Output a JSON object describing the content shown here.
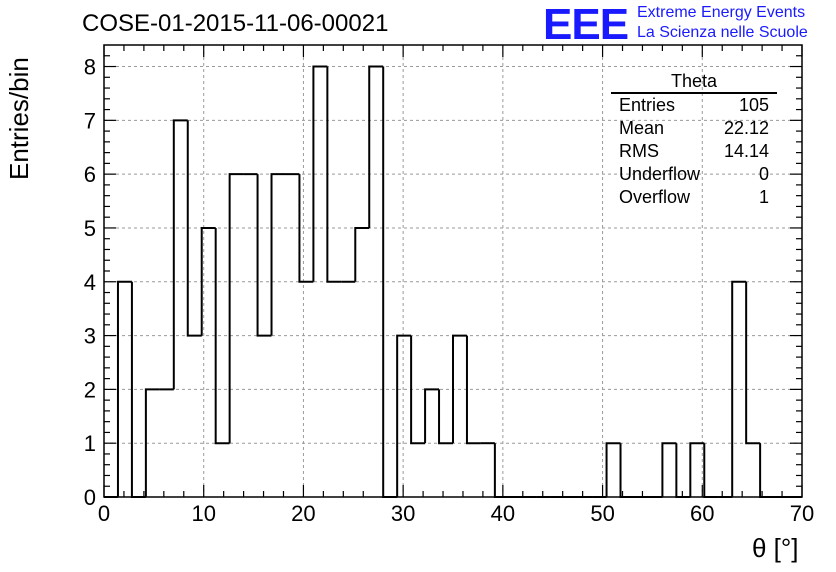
{
  "title": "COSE-01-2015-11-06-00021",
  "logo": {
    "mark": "EEE",
    "line1": "Extreme Energy Events",
    "line2": "La Scienza nelle Scuole",
    "color": "#1a1aff"
  },
  "stats": {
    "title": "Theta",
    "rows": [
      {
        "label": "Entries",
        "value": "105"
      },
      {
        "label": "Mean",
        "value": "22.12"
      },
      {
        "label": "RMS",
        "value": "14.14"
      },
      {
        "label": "Underflow",
        "value": "0"
      },
      {
        "label": "Overflow",
        "value": "1"
      }
    ]
  },
  "chart_data": {
    "type": "bar",
    "histogram": true,
    "xlabel": "θ [°]",
    "ylabel": "Entries/bin",
    "xlim": [
      0,
      70
    ],
    "ylim": [
      0,
      8.4
    ],
    "grid": true,
    "bin_width": 1.4,
    "bin_edges_start": 0,
    "x_ticks": [
      0,
      10,
      20,
      30,
      40,
      50,
      60,
      70
    ],
    "y_ticks": [
      0,
      1,
      2,
      3,
      4,
      5,
      6,
      7,
      8
    ],
    "values": [
      0,
      4,
      0,
      2,
      2,
      7,
      3,
      5,
      1,
      6,
      6,
      3,
      6,
      6,
      4,
      8,
      4,
      4,
      5,
      8,
      0,
      3,
      1,
      2,
      1,
      3,
      1,
      1,
      0,
      0,
      0,
      0,
      0,
      0,
      0,
      0,
      1,
      0,
      0,
      0,
      1,
      0,
      1,
      0,
      0,
      4,
      1,
      0,
      0,
      0
    ]
  }
}
